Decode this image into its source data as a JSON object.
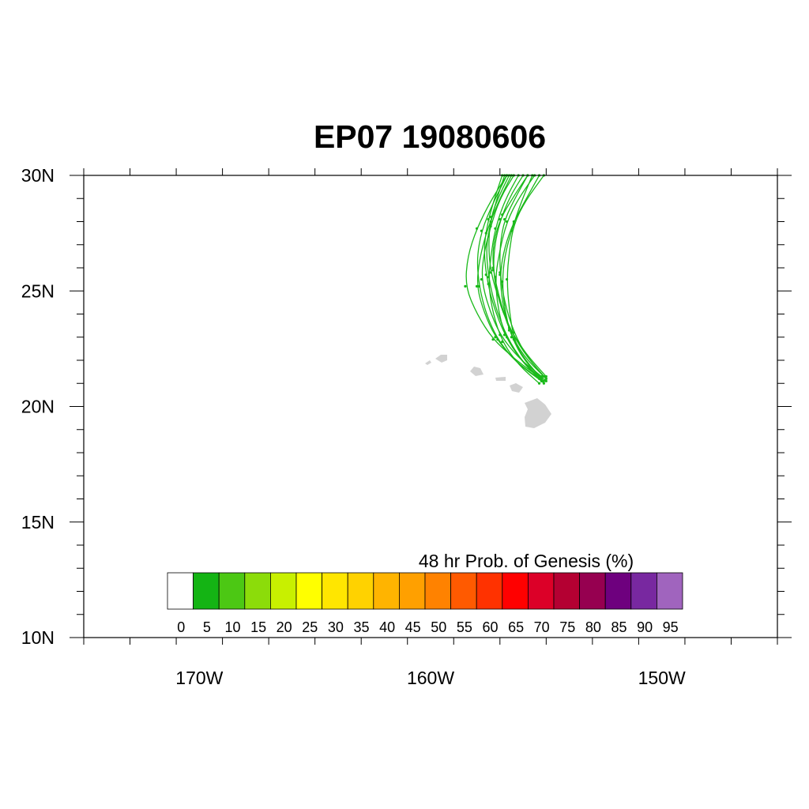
{
  "title": "EP07 19080606",
  "map": {
    "lat_range": [
      10,
      30
    ],
    "lon_range": [
      -175,
      -145
    ],
    "lat_labels": [
      "10N",
      "15N",
      "20N",
      "25N",
      "30N"
    ],
    "lon_labels": [
      "170W",
      "160W",
      "150W"
    ],
    "land_color": "#d2d2d2",
    "track_color": "#19b919",
    "tracks": [
      {
        "lon": [
          -155.0,
          -155.9,
          -156.4,
          -156.6,
          -156.7,
          -156.6,
          -156.4,
          -155.9,
          -155.1
        ],
        "lat": [
          21.1,
          21.9,
          22.9,
          24.2,
          25.5,
          26.7,
          27.9,
          28.9,
          30.0
        ]
      },
      {
        "lon": [
          -155.2,
          -156.1,
          -156.8,
          -157.1,
          -157.2,
          -157.0,
          -156.7,
          -156.2,
          -155.5
        ],
        "lat": [
          21.2,
          22.0,
          23.1,
          24.3,
          25.6,
          26.8,
          28.0,
          29.0,
          30.0
        ]
      },
      {
        "lon": [
          -155.1,
          -156.0,
          -156.6,
          -157.0,
          -157.3,
          -157.3,
          -157.0,
          -156.4,
          -155.8
        ],
        "lat": [
          21.3,
          22.2,
          23.3,
          24.6,
          25.9,
          27.0,
          28.1,
          29.1,
          30.0
        ]
      },
      {
        "lon": [
          -155.3,
          -156.2,
          -156.9,
          -157.3,
          -157.5,
          -157.4,
          -157.2,
          -156.8,
          -156.2
        ],
        "lat": [
          21.0,
          21.8,
          22.8,
          24.0,
          25.3,
          26.5,
          27.7,
          28.9,
          30.0
        ]
      },
      {
        "lon": [
          -155.0,
          -155.8,
          -156.5,
          -157.0,
          -157.4,
          -157.5,
          -157.4,
          -157.0,
          -156.6
        ],
        "lat": [
          21.2,
          22.1,
          23.2,
          24.5,
          25.8,
          27.0,
          28.2,
          29.2,
          30.0
        ]
      },
      {
        "lon": [
          -155.2,
          -156.2,
          -157.0,
          -157.5,
          -157.8,
          -157.7,
          -157.4,
          -157.0,
          -156.4
        ],
        "lat": [
          21.3,
          22.1,
          23.1,
          24.3,
          25.5,
          26.6,
          27.8,
          29.0,
          30.0
        ]
      },
      {
        "lon": [
          -155.1,
          -155.9,
          -156.5,
          -156.8,
          -156.9,
          -156.8,
          -156.5,
          -156.1,
          -155.6
        ],
        "lat": [
          21.1,
          22.0,
          23.0,
          24.2,
          25.4,
          26.5,
          27.6,
          28.8,
          30.0
        ]
      },
      {
        "lon": [
          -155.3,
          -156.4,
          -157.2,
          -157.7,
          -158.0,
          -157.9,
          -157.6,
          -157.1,
          -156.5
        ],
        "lat": [
          21.2,
          22.0,
          23.0,
          24.1,
          25.2,
          26.3,
          27.5,
          28.8,
          30.0
        ]
      },
      {
        "lon": [
          -155.0,
          -155.9,
          -156.6,
          -157.1,
          -157.3,
          -157.2,
          -156.9,
          -156.5,
          -156.0
        ],
        "lat": [
          21.3,
          22.3,
          23.4,
          24.7,
          26.0,
          27.2,
          28.3,
          29.2,
          30.0
        ]
      },
      {
        "lon": [
          -155.2,
          -156.3,
          -157.3,
          -158.0,
          -158.5,
          -158.4,
          -158.0,
          -157.4,
          -156.7
        ],
        "lat": [
          21.2,
          22.0,
          22.9,
          24.0,
          25.2,
          26.5,
          27.7,
          28.9,
          30.0
        ]
      },
      {
        "lon": [
          -155.1,
          -156.0,
          -156.7,
          -157.2,
          -157.5,
          -157.6,
          -157.4,
          -157.1,
          -156.8
        ],
        "lat": [
          21.0,
          21.9,
          23.0,
          24.3,
          25.6,
          26.9,
          28.0,
          29.1,
          30.0
        ]
      },
      {
        "lon": [
          -155.2,
          -156.1,
          -156.8,
          -157.3,
          -157.6,
          -157.7,
          -157.5,
          -157.2,
          -156.9
        ],
        "lat": [
          21.1,
          22.0,
          23.1,
          24.4,
          25.7,
          26.9,
          28.1,
          29.1,
          30.0
        ]
      },
      {
        "lon": [
          -155.3,
          -156.1,
          -156.6,
          -156.9,
          -157.0,
          -156.8,
          -156.4,
          -155.8,
          -155.3
        ],
        "lat": [
          21.3,
          22.2,
          23.3,
          24.5,
          25.7,
          26.9,
          28.0,
          29.1,
          30.0
        ]
      },
      {
        "lon": [
          -155.0,
          -155.8,
          -156.4,
          -156.8,
          -157.0,
          -157.0,
          -156.8,
          -156.3,
          -155.8
        ],
        "lat": [
          21.2,
          22.1,
          23.2,
          24.5,
          25.8,
          27.0,
          28.1,
          29.1,
          30.0
        ]
      },
      {
        "lon": [
          -155.2,
          -156.3,
          -157.1,
          -157.6,
          -157.9,
          -158.0,
          -157.8,
          -157.3,
          -156.7
        ],
        "lat": [
          21.1,
          21.9,
          22.9,
          24.0,
          25.2,
          26.4,
          27.6,
          28.8,
          30.0
        ]
      }
    ]
  },
  "colorbar": {
    "label": "48 hr Prob. of Genesis (%)",
    "tick_labels": [
      "0",
      "5",
      "10",
      "15",
      "20",
      "25",
      "30",
      "35",
      "40",
      "45",
      "50",
      "55",
      "60",
      "65",
      "70",
      "75",
      "80",
      "85",
      "90",
      "95"
    ],
    "colors": [
      "#ffffff",
      "#14b414",
      "#4cc814",
      "#8cdc0a",
      "#c8f000",
      "#ffff00",
      "#ffe600",
      "#ffd200",
      "#ffb400",
      "#ffa000",
      "#ff8200",
      "#ff5a00",
      "#ff3200",
      "#ff0000",
      "#dc0028",
      "#b40032",
      "#960050",
      "#6e007e",
      "#7828a0",
      "#a064be"
    ]
  }
}
